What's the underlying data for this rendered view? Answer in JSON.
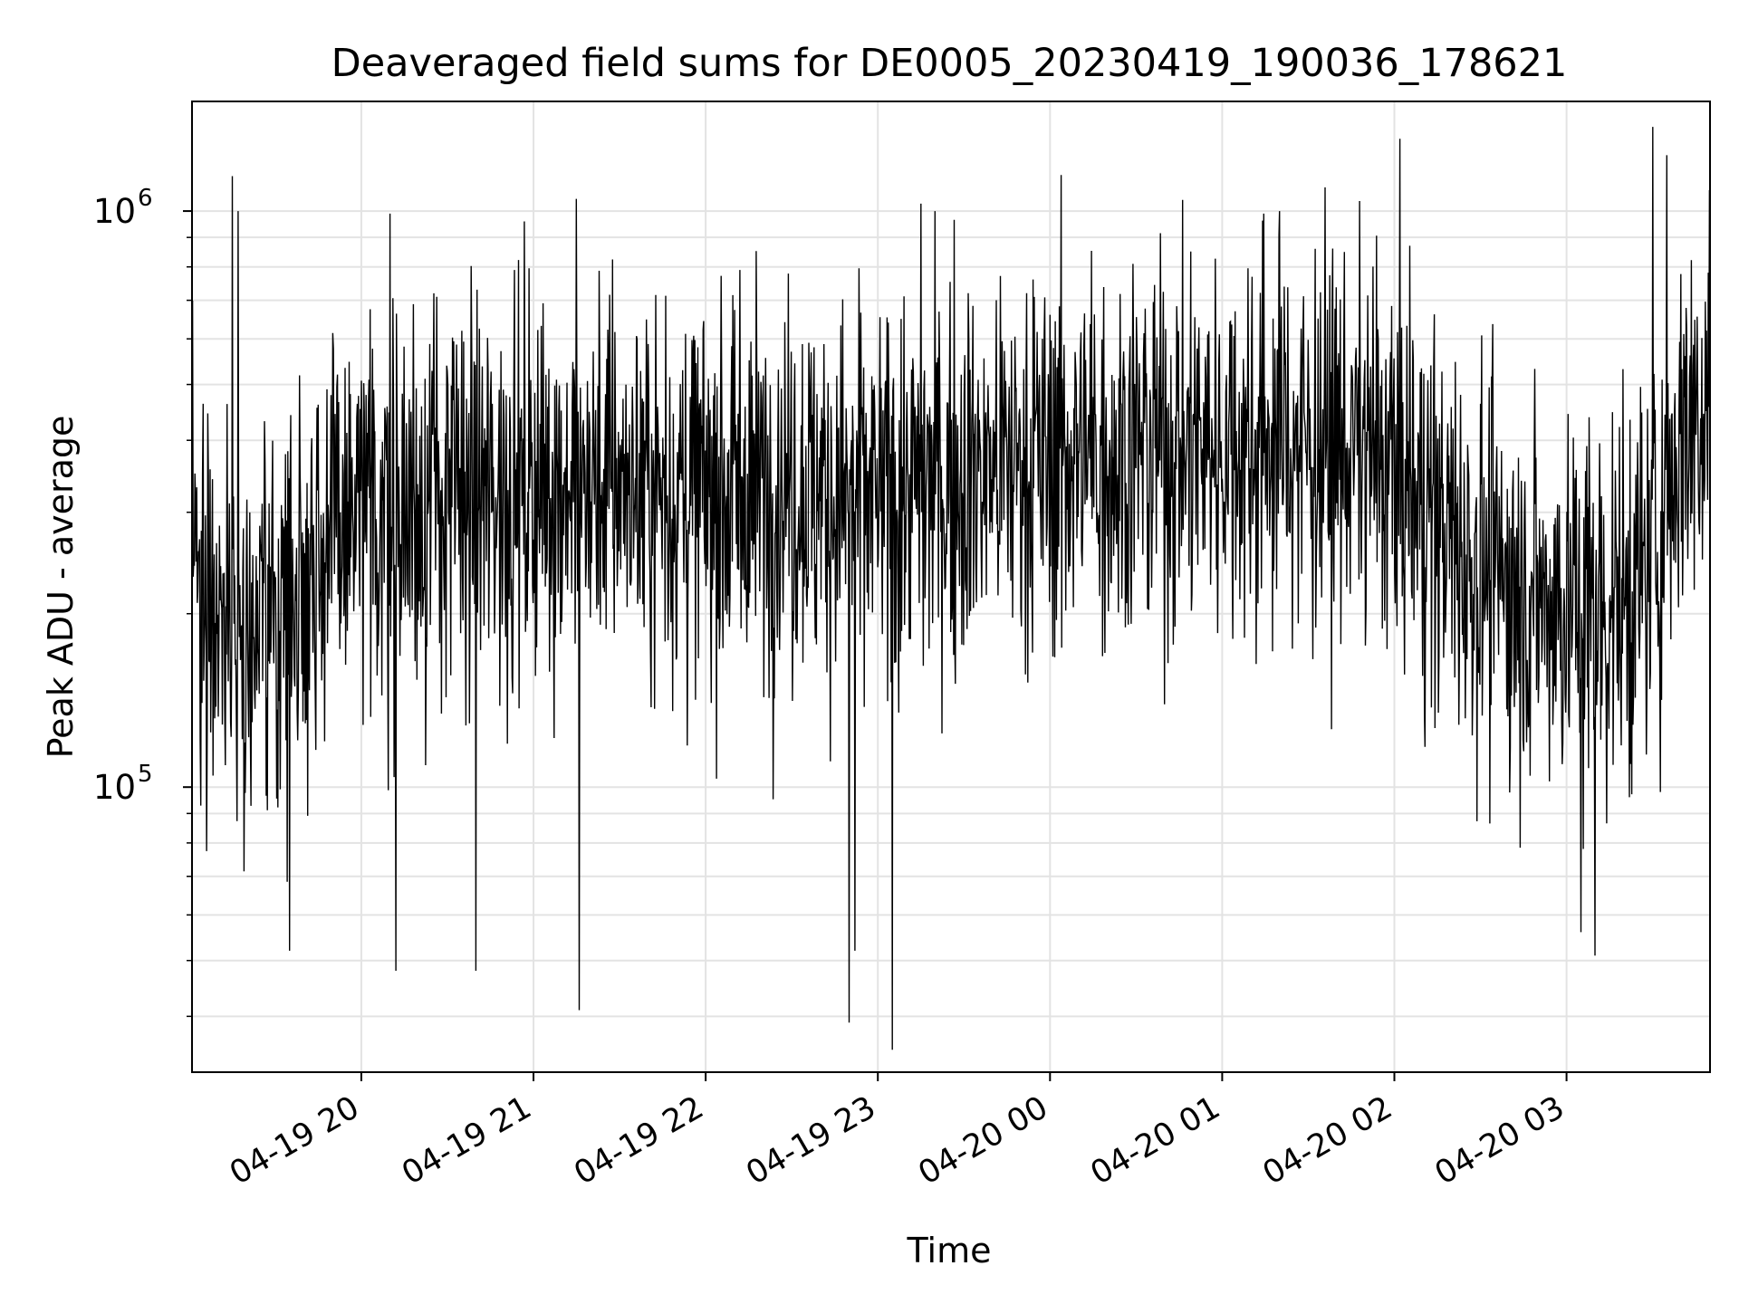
{
  "chart_data": {
    "type": "line",
    "title": "Deaveraged field sums for DE0005_20230419_190036_178621",
    "xlabel": "Time",
    "ylabel": "Peak ADU - average",
    "yscale": "log",
    "xlim": [
      "2023-04-19 19:01",
      "2023-04-20 03:50"
    ],
    "ylim": [
      32000,
      1550000
    ],
    "grid": true,
    "line_color": "#000000",
    "x_ticks": [
      {
        "label": "04-19 20",
        "time": "2023-04-19 20:00"
      },
      {
        "label": "04-19 21",
        "time": "2023-04-19 21:00"
      },
      {
        "label": "04-19 22",
        "time": "2023-04-19 22:00"
      },
      {
        "label": "04-19 23",
        "time": "2023-04-19 23:00"
      },
      {
        "label": "04-20 00",
        "time": "2023-04-20 00:00"
      },
      {
        "label": "04-20 01",
        "time": "2023-04-20 01:00"
      },
      {
        "label": "04-20 02",
        "time": "2023-04-20 02:00"
      },
      {
        "label": "04-20 03",
        "time": "2023-04-20 03:00"
      }
    ],
    "y_ticks": [
      {
        "base": "10",
        "exp": "5",
        "value": 100000
      },
      {
        "base": "10",
        "exp": "6",
        "value": 1000000
      }
    ],
    "series": [
      {
        "x": [
          "2023-04-19 19:01",
          "2023-04-19 19:05",
          "2023-04-19 19:10",
          "2023-04-19 19:15",
          "2023-04-19 19:20",
          "2023-04-19 19:25",
          "2023-04-19 19:30",
          "2023-04-19 19:35",
          "2023-04-19 19:40",
          "2023-04-19 19:45",
          "2023-04-19 19:50",
          "2023-04-19 19:55",
          "2023-04-19 20:00",
          "2023-04-19 20:10",
          "2023-04-19 20:20",
          "2023-04-19 20:30",
          "2023-04-19 20:40",
          "2023-04-19 20:50",
          "2023-04-19 21:00",
          "2023-04-19 21:10",
          "2023-04-19 21:20",
          "2023-04-19 21:30",
          "2023-04-19 21:40",
          "2023-04-19 21:50",
          "2023-04-19 22:00",
          "2023-04-19 22:15",
          "2023-04-19 22:30",
          "2023-04-19 22:45",
          "2023-04-19 23:00",
          "2023-04-19 23:15",
          "2023-04-19 23:30",
          "2023-04-19 23:45",
          "2023-04-20 00:00",
          "2023-04-20 00:15",
          "2023-04-20 00:30",
          "2023-04-20 00:45",
          "2023-04-20 01:00",
          "2023-04-20 01:15",
          "2023-04-20 01:30",
          "2023-04-20 01:45",
          "2023-04-20 02:00",
          "2023-04-20 02:10",
          "2023-04-20 02:20",
          "2023-04-20 02:30",
          "2023-04-20 02:40",
          "2023-04-20 02:50",
          "2023-04-20 03:00",
          "2023-04-20 03:10",
          "2023-04-20 03:20",
          "2023-04-20 03:30",
          "2023-04-20 03:40",
          "2023-04-20 03:50"
        ],
        "values": [
          250000,
          230000,
          210000,
          190000,
          180000,
          185000,
          195000,
          215000,
          240000,
          260000,
          275000,
          285000,
          290000,
          300000,
          310000,
          320000,
          315000,
          325000,
          330000,
          340000,
          335000,
          345000,
          330000,
          325000,
          320000,
          330000,
          335000,
          320000,
          310000,
          330000,
          350000,
          365000,
          370000,
          380000,
          385000,
          390000,
          395000,
          400000,
          395000,
          390000,
          360000,
          310000,
          270000,
          240000,
          225000,
          215000,
          205000,
          200000,
          210000,
          240000,
          420000,
          500000
        ],
        "extremes": [
          {
            "time": "2023-04-19 19:15",
            "value": 1150000
          },
          {
            "time": "2023-04-19 19:17",
            "value": 1000000
          },
          {
            "time": "2023-04-19 19:35",
            "value": 52000
          },
          {
            "time": "2023-04-19 20:10",
            "value": 990000
          },
          {
            "time": "2023-04-19 20:12",
            "value": 48000
          },
          {
            "time": "2023-04-19 20:40",
            "value": 48000
          },
          {
            "time": "2023-04-19 21:15",
            "value": 1050000
          },
          {
            "time": "2023-04-19 21:16",
            "value": 41000
          },
          {
            "time": "2023-04-19 22:50",
            "value": 39000
          },
          {
            "time": "2023-04-19 22:52",
            "value": 52000
          },
          {
            "time": "2023-04-19 23:05",
            "value": 35000
          },
          {
            "time": "2023-04-19 23:15",
            "value": 1030000
          },
          {
            "time": "2023-04-19 23:20",
            "value": 1000000
          },
          {
            "time": "2023-04-20 01:20",
            "value": 1000000
          },
          {
            "time": "2023-04-20 03:05",
            "value": 56000
          },
          {
            "time": "2023-04-20 03:10",
            "value": 51000
          },
          {
            "time": "2023-04-20 03:30",
            "value": 1400000
          },
          {
            "time": "2023-04-20 03:35",
            "value": 1250000
          }
        ]
      }
    ]
  }
}
